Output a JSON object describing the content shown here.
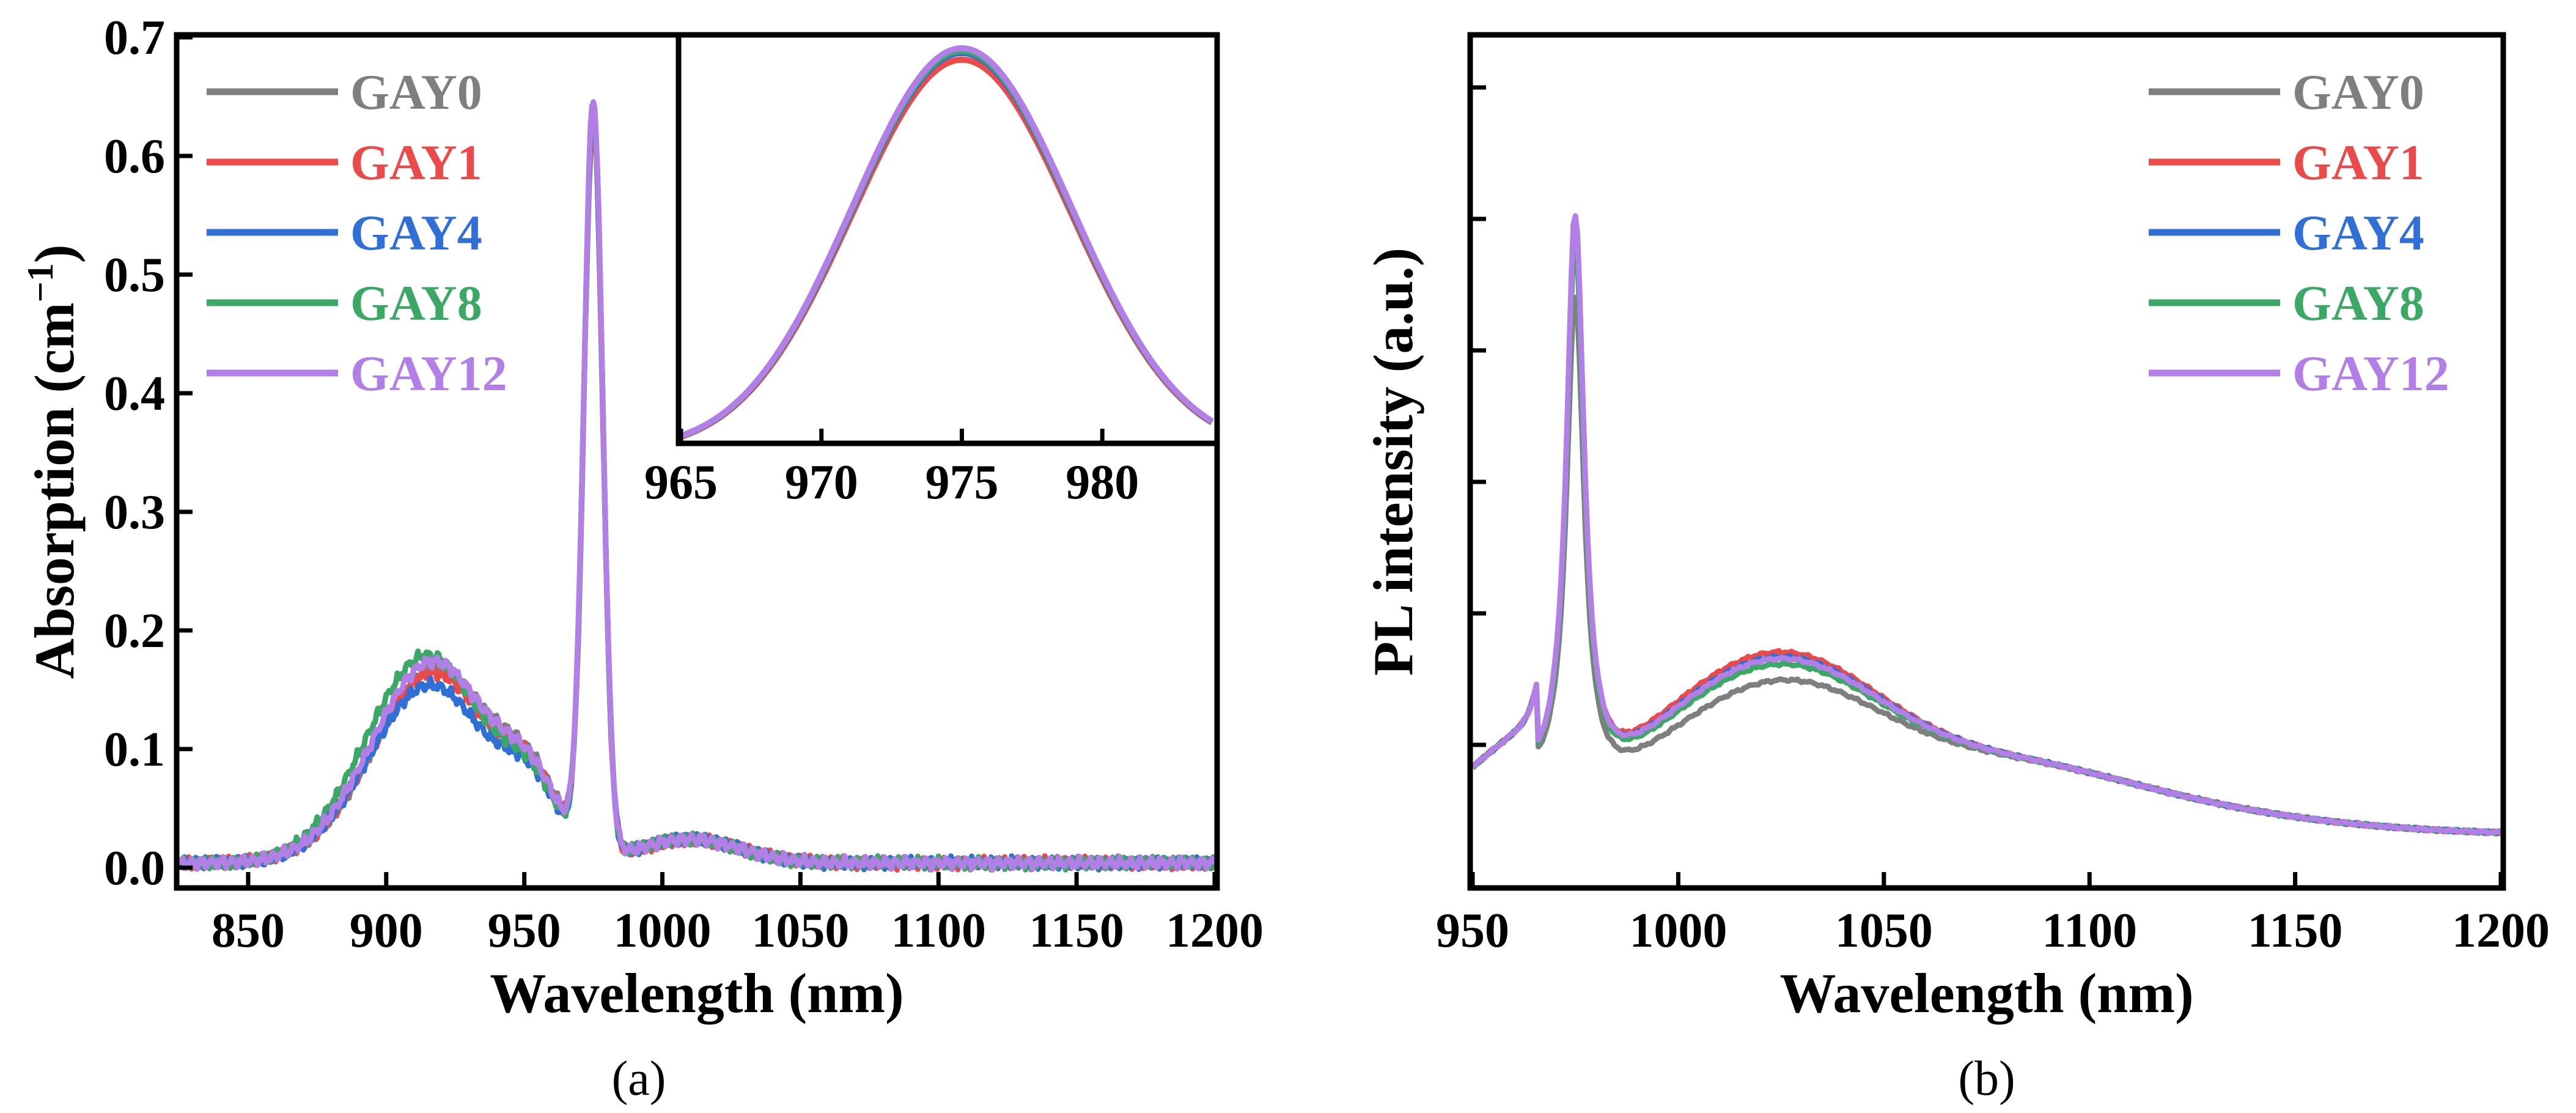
{
  "colors": {
    "GAY0": "#7f7f7f",
    "GAY1": "#ea4a4a",
    "GAY4": "#2f6fd6",
    "GAY8": "#3ca866",
    "GAY12": "#b27fe6"
  },
  "chart_data": [
    {
      "id": "a",
      "type": "line",
      "caption": "(a)",
      "xlabel": "Wavelength (nm)",
      "ylabel_main": "Absorption (cm",
      "ylabel_sup": "−1",
      "ylabel_close": ")",
      "xlim": [
        825,
        1200
      ],
      "ylim": [
        -0.015,
        0.7
      ],
      "xticks": [
        850,
        900,
        950,
        1000,
        1050,
        1100,
        1150,
        1200
      ],
      "xtick_labels": [
        "850",
        "900",
        "950",
        "1000",
        "1050",
        "1100",
        "1150",
        "1200"
      ],
      "yticks": [
        0.0,
        0.1,
        0.2,
        0.3,
        0.4,
        0.5,
        0.6,
        0.7
      ],
      "ytick_labels": [
        "0.0",
        "0.1",
        "0.2",
        "0.3",
        "0.4",
        "0.5",
        "0.6",
        "0.7"
      ],
      "legend": [
        "GAY0",
        "GAY1",
        "GAY4",
        "GAY8",
        "GAY12"
      ],
      "legend_position": "top-left",
      "series": [
        {
          "name": "GAY0",
          "broad_peak_nm": 918,
          "broad_peak": 0.165,
          "sharp_peak_nm": 975,
          "sharp_peak": 0.625
        },
        {
          "name": "GAY1",
          "broad_peak_nm": 917,
          "broad_peak": 0.16,
          "sharp_peak_nm": 975,
          "sharp_peak": 0.615
        },
        {
          "name": "GAY4",
          "broad_peak_nm": 916,
          "broad_peak": 0.15,
          "sharp_peak_nm": 975,
          "sharp_peak": 0.625
        },
        {
          "name": "GAY8",
          "broad_peak_nm": 915,
          "broad_peak": 0.175,
          "sharp_peak_nm": 975,
          "sharp_peak": 0.628
        },
        {
          "name": "GAY12",
          "broad_peak_nm": 917,
          "broad_peak": 0.17,
          "sharp_peak_nm": 975,
          "sharp_peak": 0.632
        }
      ],
      "inset": {
        "xlim": [
          965,
          984
        ],
        "ylim": [
          0.0,
          0.7
        ],
        "xticks": [
          965,
          970,
          975,
          980
        ],
        "xtick_labels": [
          "965",
          "970",
          "975",
          "980"
        ],
        "peak_nm": 975
      }
    },
    {
      "id": "b",
      "type": "line",
      "caption": "(b)",
      "xlabel": "Wavelength (nm)",
      "ylabel": "PL intensity (a.u.)",
      "xlim": [
        950,
        1200
      ],
      "ylim": [
        0,
        1.0
      ],
      "xticks": [
        950,
        1000,
        1050,
        1100,
        1150,
        1200
      ],
      "xtick_labels": [
        "950",
        "1000",
        "1050",
        "1100",
        "1150",
        "1200"
      ],
      "yticks_unlabeled": 6,
      "legend": [
        "GAY0",
        "GAY1",
        "GAY4",
        "GAY8",
        "GAY12"
      ],
      "legend_position": "top-right",
      "series": [
        {
          "name": "GAY0",
          "peak_nm": 975,
          "peak": 0.8,
          "band_nm": 1025,
          "band": 0.215,
          "dip": 0.115
        },
        {
          "name": "GAY1",
          "peak_nm": 975,
          "peak": 0.86,
          "band_nm": 1025,
          "band": 0.245,
          "dip": 0.135
        },
        {
          "name": "GAY4",
          "peak_nm": 975,
          "peak": 0.87,
          "band_nm": 1025,
          "band": 0.24,
          "dip": 0.13
        },
        {
          "name": "GAY8",
          "peak_nm": 975,
          "peak": 0.86,
          "band_nm": 1025,
          "band": 0.232,
          "dip": 0.127
        },
        {
          "name": "GAY12",
          "peak_nm": 975,
          "peak": 0.89,
          "band_nm": 1025,
          "band": 0.238,
          "dip": 0.13
        }
      ]
    }
  ]
}
